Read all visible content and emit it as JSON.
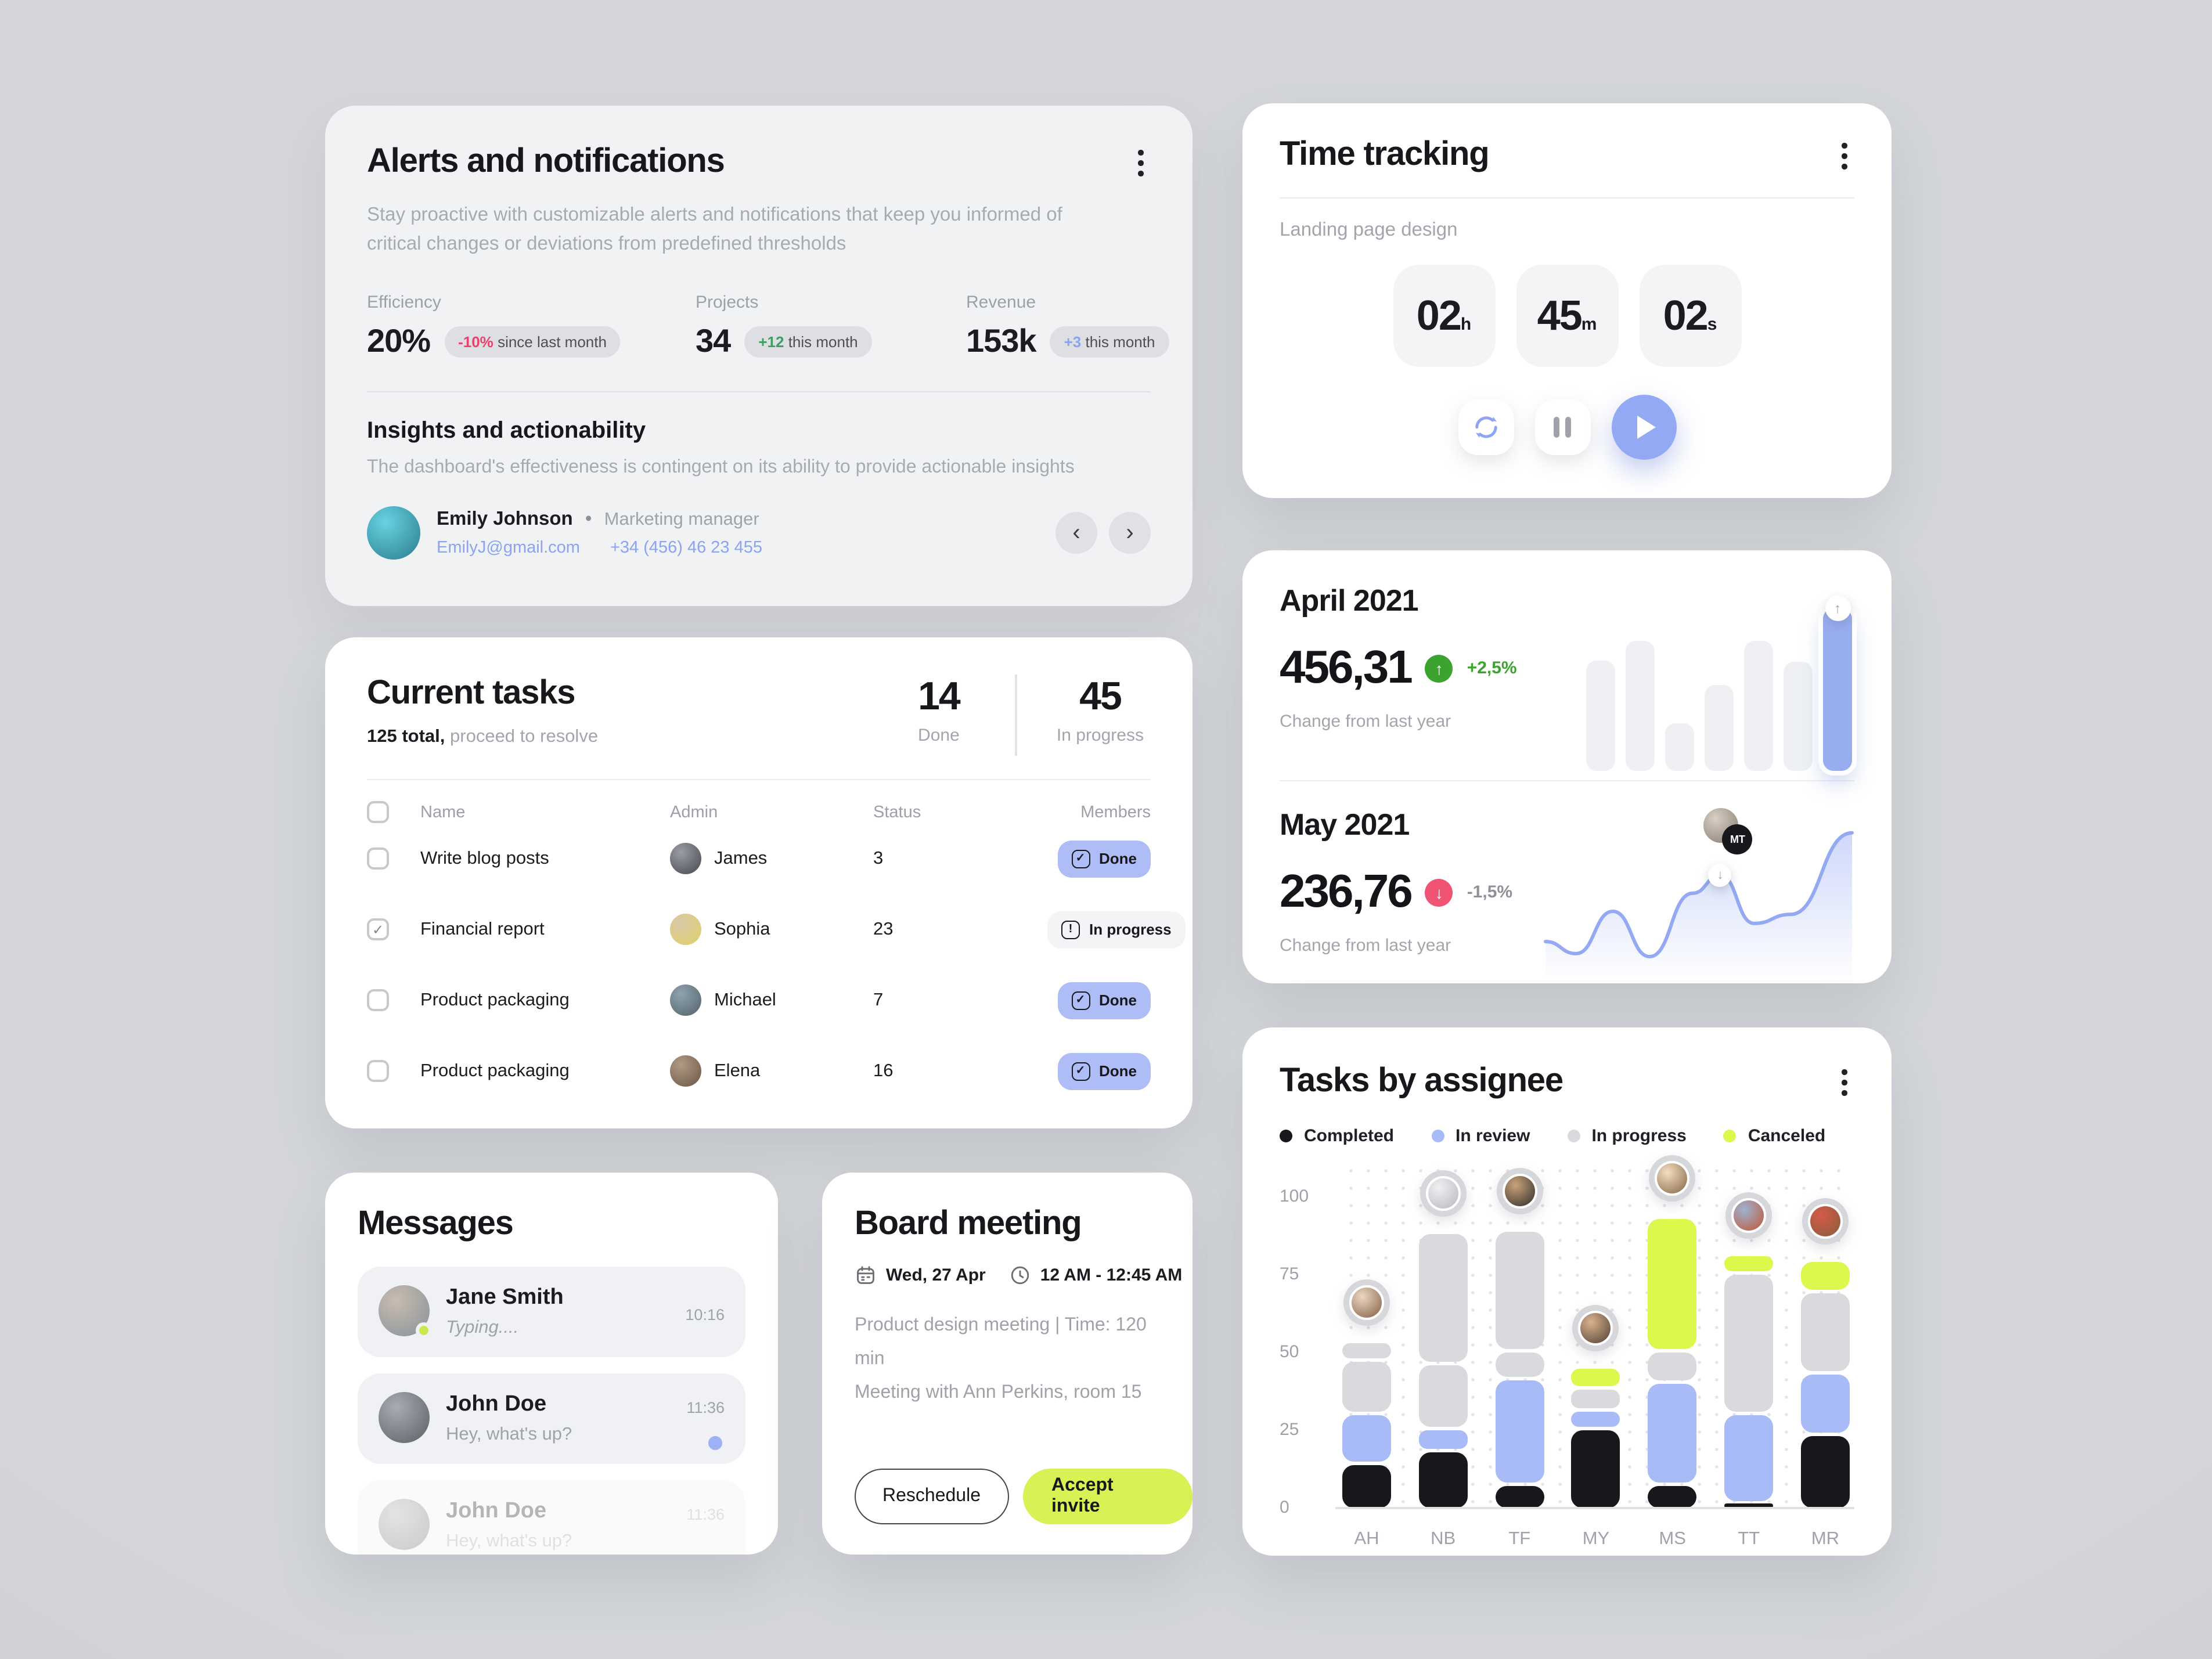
{
  "icons": {
    "kebab": "⋮",
    "chevron_left": "‹",
    "chevron_right": "›",
    "arrow_up": "↑",
    "arrow_down": "↓",
    "check": "✓",
    "exclamation": "!"
  },
  "colors": {
    "page_bg": "#caccd1",
    "card_bg": "#ffffff",
    "alerts_card_bg": "#f1f2f4",
    "accent_blue": "#93a9f3",
    "badge_blue": "#aebdf6",
    "lime": "#d9f155",
    "chart_lime": "#ddf74d",
    "pink": "#e8436d",
    "green": "#3f9e63",
    "delta_green": "#3da32f",
    "delta_pink": "#ef5475",
    "gray_text": "#a2a5ac",
    "dark_text": "#17181c"
  },
  "alerts": {
    "title": "Alerts and notifications",
    "description": "Stay proactive with customizable alerts and notifications that keep you informed of critical changes or deviations from predefined thresholds",
    "stats": [
      {
        "label": "Efficiency",
        "value": "20%",
        "badge_prefix": "-10%",
        "badge_prefix_color": "#e8436d",
        "badge_text": "since last month"
      },
      {
        "label": "Projects",
        "value": "34",
        "badge_prefix": "+12",
        "badge_prefix_color": "#3f9e63",
        "badge_text": "this month"
      },
      {
        "label": "Revenue",
        "value": "153k",
        "badge_prefix": "+3",
        "badge_prefix_color": "#8ba3f2",
        "badge_text": "this month"
      }
    ],
    "insights_title": "Insights and actionability",
    "insights_text": "The dashboard's effectiveness is contingent on its ability to provide actionable insights",
    "contact": {
      "name": "Emily Johnson",
      "separator": "•",
      "role": "Marketing manager",
      "email": "EmilyJ@gmail.com",
      "phone": "+34 (456) 46 23 455",
      "avatar_colors": [
        "#67d3e0",
        "#2e7f93"
      ]
    }
  },
  "time_tracking": {
    "title": "Time tracking",
    "task": "Landing page design",
    "units": [
      {
        "value": "02",
        "unit": "h"
      },
      {
        "value": "45",
        "unit": "m"
      },
      {
        "value": "02",
        "unit": "s"
      }
    ]
  },
  "monthly": {
    "april": {
      "title": "April 2021",
      "value": "456,31",
      "delta": "+2,5%",
      "direction": "up",
      "caption": "Change from last year"
    },
    "may": {
      "title": "May 2021",
      "value": "236,76",
      "delta": "-1,5%",
      "direction": "down",
      "caption": "Change from last year",
      "marker_label": "MT",
      "marker_avatar_colors": [
        "#d8cfc5",
        "#8a7f73"
      ]
    }
  },
  "current_tasks": {
    "title": "Current tasks",
    "summary_strong": "125 total,",
    "summary_rest": " proceed to resolve",
    "counters": [
      {
        "value": "14",
        "label": "Done"
      },
      {
        "value": "45",
        "label": "In progress"
      }
    ],
    "columns": [
      "Name",
      "Admin",
      "Status",
      "Members"
    ],
    "rows": [
      {
        "checked": false,
        "name": "Write blog posts",
        "admin": "James",
        "avatar_colors": [
          "#9a9da5",
          "#4a4c52"
        ],
        "status": "3",
        "badge": "Done",
        "badge_type": "done"
      },
      {
        "checked": true,
        "name": "Financial report",
        "admin": "Sophia",
        "avatar_colors": [
          "#d8c8a8",
          "#e0d06a"
        ],
        "status": "23",
        "badge": "In progress",
        "badge_type": "progress"
      },
      {
        "checked": false,
        "name": "Product packaging",
        "admin": "Michael",
        "avatar_colors": [
          "#8fa3ae",
          "#55656e"
        ],
        "status": "7",
        "badge": "Done",
        "badge_type": "done"
      },
      {
        "checked": false,
        "name": "Product packaging",
        "admin": "Elena",
        "avatar_colors": [
          "#b09a85",
          "#6e5a48"
        ],
        "status": "16",
        "badge": "Done",
        "badge_type": "done"
      }
    ]
  },
  "messages": {
    "title": "Messages",
    "items": [
      {
        "name": "Jane Smith",
        "preview": "Typing....",
        "time": "10:16",
        "typing": true,
        "online": true,
        "unread": false,
        "faded": false,
        "avatar_colors": [
          "#c8bcae",
          "#8a949c"
        ]
      },
      {
        "name": "John Doe",
        "preview": "Hey, what's up?",
        "time": "11:36",
        "typing": false,
        "online": false,
        "unread": true,
        "faded": false,
        "avatar_colors": [
          "#a9acb2",
          "#5f6268"
        ]
      },
      {
        "name": "John Doe",
        "preview": "Hey, what's up?",
        "time": "11:36",
        "typing": false,
        "online": false,
        "unread": false,
        "faded": true,
        "avatar_colors": [
          "#a9acb2",
          "#5f6268"
        ]
      }
    ]
  },
  "board_meeting": {
    "title": "Board meeting",
    "date": "Wed, 27 Apr",
    "time": "12 AM - 12:45 AM",
    "description_line1": "Product design meeting | Time: 120 min",
    "description_line2": "Meeting with Ann Perkins, room 15",
    "reschedule_label": "Reschedule",
    "accept_label": "Accept invite"
  },
  "tasks_by_assignee": {
    "title": "Tasks by assignee",
    "legend": [
      {
        "label": "Completed",
        "color": "#17181c"
      },
      {
        "label": "In review",
        "color": "#a9bbf6"
      },
      {
        "label": "In progress",
        "color": "#d9dadd"
      },
      {
        "label": "Canceled",
        "color": "#ddf74d"
      }
    ]
  },
  "chart_data": [
    {
      "id": "tasks_by_assignee",
      "type": "bar",
      "stacked": true,
      "title": "Tasks by assignee",
      "categories": [
        "AH",
        "NB",
        "TF",
        "MY",
        "MS",
        "TT",
        "MR"
      ],
      "ylim": [
        0,
        100
      ],
      "yticks": [
        0,
        25,
        50,
        75,
        100
      ],
      "grid": "dotted",
      "legend_position": "top",
      "segment_colors": {
        "completed": "#17181c",
        "in_review": "#a9bbf6",
        "in_progress": "#d9dadd",
        "canceled": "#ddf74d"
      },
      "series": [
        {
          "name": "Completed",
          "key": "completed",
          "values": [
            15,
            19,
            8,
            26,
            8,
            2,
            24
          ]
        },
        {
          "name": "In review",
          "key": "in_review",
          "values": [
            16,
            7,
            34,
            6,
            33,
            29,
            20
          ]
        },
        {
          "name": "In progress",
          "key": "in_progress",
          "values": [
            23,
            63,
            48,
            7,
            10,
            45,
            26
          ]
        },
        {
          "name": "Canceled",
          "key": "canceled",
          "values": [
            0,
            0,
            0,
            7,
            43,
            6,
            10
          ]
        }
      ],
      "bars": [
        {
          "cat": "AH",
          "segs": [
            [
              "completed",
              15
            ],
            [
              "in_review",
              16
            ],
            [
              "in_progress",
              17
            ],
            [
              "in_progress",
              6
            ]
          ],
          "avatar_colors": [
            "#ead9c4",
            "#8a6248"
          ]
        },
        {
          "cat": "NB",
          "segs": [
            [
              "completed",
              19
            ],
            [
              "in_review",
              7
            ],
            [
              "in_progress",
              21
            ],
            [
              "in_progress",
              42
            ]
          ],
          "avatar_colors": [
            "#f0f0f2",
            "#b9bbc1"
          ]
        },
        {
          "cat": "TF",
          "segs": [
            [
              "completed",
              8
            ],
            [
              "in_review",
              34
            ],
            [
              "in_progress",
              9
            ],
            [
              "in_progress",
              39
            ]
          ],
          "avatar_colors": [
            "#caa27a",
            "#36322f"
          ]
        },
        {
          "cat": "MY",
          "segs": [
            [
              "completed",
              26
            ],
            [
              "in_review",
              6
            ],
            [
              "in_progress",
              7
            ],
            [
              "canceled",
              7
            ]
          ],
          "avatar_colors": [
            "#dab28c",
            "#57453a"
          ]
        },
        {
          "cat": "MS",
          "segs": [
            [
              "completed",
              8
            ],
            [
              "in_review",
              33
            ],
            [
              "in_progress",
              10
            ],
            [
              "canceled",
              43
            ]
          ],
          "avatar_colors": [
            "#f4dfc2",
            "#8a6a4a"
          ]
        },
        {
          "cat": "TT",
          "segs": [
            [
              "completed",
              2
            ],
            [
              "in_review",
              29
            ],
            [
              "in_progress",
              45
            ],
            [
              "canceled",
              6
            ]
          ],
          "avatar_colors": [
            "#9db3d2",
            "#c05a3a"
          ]
        },
        {
          "cat": "MR",
          "segs": [
            [
              "completed",
              24
            ],
            [
              "in_review",
              20
            ],
            [
              "in_progress",
              26
            ],
            [
              "canceled",
              10
            ]
          ],
          "avatar_colors": [
            "#d55a48",
            "#8a5f3e"
          ]
        }
      ]
    },
    {
      "id": "april_mini",
      "type": "bar",
      "values": [
        68,
        80,
        29,
        53,
        80,
        67,
        100
      ],
      "highlight_index": 6,
      "bar_color": "#eef0f3",
      "highlight_color": "#98acf0"
    },
    {
      "id": "may_line",
      "type": "line",
      "line_color": "#93a9f3",
      "points": [
        [
          0,
          20
        ],
        [
          10,
          12
        ],
        [
          22,
          40
        ],
        [
          34,
          10
        ],
        [
          48,
          52
        ],
        [
          57,
          64
        ],
        [
          68,
          32
        ],
        [
          80,
          38
        ],
        [
          100,
          92
        ]
      ],
      "marker_index": 5,
      "marker_label": "MT"
    }
  ]
}
